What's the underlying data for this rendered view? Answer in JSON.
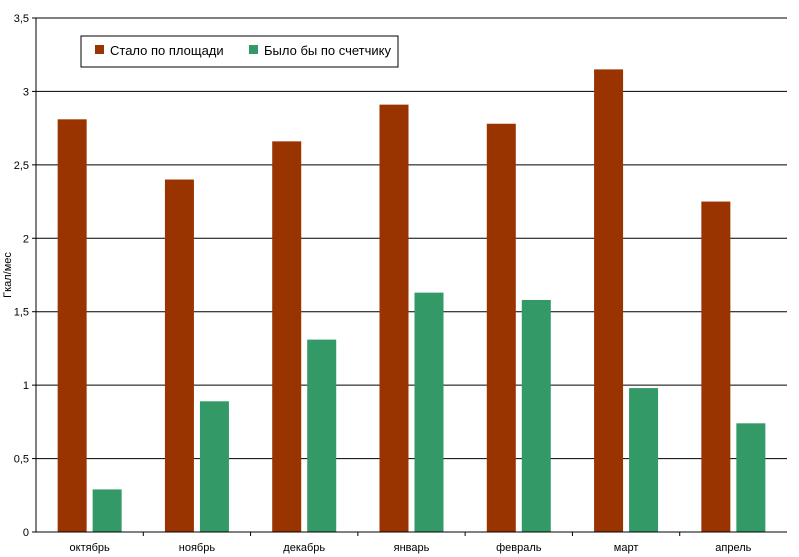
{
  "chart_data": {
    "type": "bar",
    "title": "",
    "xlabel": "",
    "ylabel": "Гкал/мес",
    "ylim": [
      0,
      3.5
    ],
    "yticks": [
      "0",
      "0,5",
      "1",
      "1,5",
      "2",
      "2,5",
      "3",
      "3,5"
    ],
    "ytick_values": [
      0,
      0.5,
      1,
      1.5,
      2,
      2.5,
      3,
      3.5
    ],
    "grid": true,
    "legend_position": "top-left",
    "categories": [
      "октябрь",
      "ноябрь",
      "декабрь",
      "январь",
      "февраль",
      "март",
      "апрель"
    ],
    "series": [
      {
        "name": "Стало по площади",
        "color": "#993300",
        "values": [
          2.81,
          2.4,
          2.66,
          2.91,
          2.78,
          3.15,
          2.25
        ]
      },
      {
        "name": "Было бы по счетчику",
        "color": "#339966",
        "values": [
          0.29,
          0.89,
          1.31,
          1.63,
          1.58,
          0.98,
          0.74
        ]
      }
    ]
  }
}
